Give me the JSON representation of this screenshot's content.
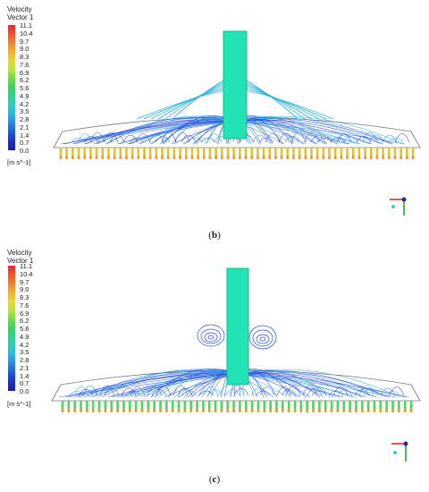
{
  "panels": [
    {
      "id": "b",
      "legend": {
        "title_line1": "Velocity",
        "title_line2": "Vector 1",
        "ticks": [
          "11.1",
          "10.4",
          "9.7",
          "9.0",
          "8.3",
          "7.6",
          "6.9",
          "6.2",
          "5.6",
          "4.9",
          "4.2",
          "3.5",
          "2.8",
          "2.1",
          "1.4",
          "0.7",
          "0.0"
        ],
        "unit": "[m s^-1]"
      },
      "caption_open": "(",
      "caption_letter": "b",
      "caption_close": ")"
    },
    {
      "id": "c",
      "legend": {
        "title_line1": "Velocity",
        "title_line2": "Vector 1",
        "ticks": [
          "11.1",
          "10.4",
          "9.7",
          "9.0",
          "8.3",
          "7.6",
          "6.9",
          "6.2",
          "5.6",
          "4.9",
          "4.2",
          "3.5",
          "2.8",
          "2.1",
          "1.4",
          "0.7",
          "0.0"
        ],
        "unit": "[m s^-1]"
      },
      "caption_open": "(",
      "caption_letter": "c",
      "caption_close": ")"
    }
  ],
  "colors": {
    "scale": [
      "#e8262a",
      "#f1542a",
      "#f6822a",
      "#f5b12d",
      "#e8d932",
      "#b8e63a",
      "#6fdc46",
      "#36d161",
      "#2ed393",
      "#2ccfc5",
      "#2ab6e2",
      "#2686e6",
      "#1f56e0",
      "#1c2fd2",
      "#1a1bb0"
    ],
    "core": "#22e3b3",
    "streamline": "#2f7fe6",
    "outlet_green": "#4ad85a",
    "outlet_orange": "#f09a2e"
  }
}
